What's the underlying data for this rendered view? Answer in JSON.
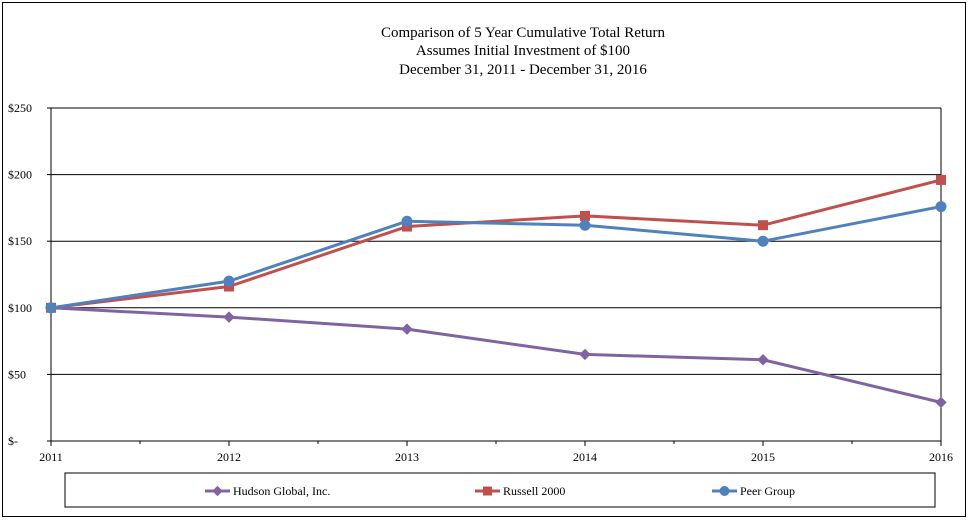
{
  "chart_data": {
    "type": "line",
    "title": [
      "Comparison  of  5 Year  Cumulative  Total  Return",
      "Assumes  Initial  Investment  of  $100",
      "December  31, 2011 - December  31, 2016"
    ],
    "categories": [
      "2011",
      "2012",
      "2013",
      "2014",
      "2015",
      "2016"
    ],
    "y_ticks": [
      {
        "value": 0,
        "label": "$-"
      },
      {
        "value": 50,
        "label": "$50"
      },
      {
        "value": 100,
        "label": "$100"
      },
      {
        "value": 150,
        "label": "$150"
      },
      {
        "value": 200,
        "label": "$200"
      },
      {
        "value": 250,
        "label": "$250"
      }
    ],
    "ylim": [
      0,
      250
    ],
    "grid": true,
    "legend_position": "bottom",
    "series": [
      {
        "name": "Hudson Global, Inc.",
        "color": "#8064A2",
        "marker": "diamond",
        "values": [
          100,
          93,
          84,
          65,
          61,
          29
        ]
      },
      {
        "name": "Russell 2000",
        "color": "#C0504D",
        "marker": "square",
        "values": [
          100,
          116,
          161,
          169,
          162,
          196
        ]
      },
      {
        "name": "Peer Group",
        "color": "#4F81BD",
        "marker": "circle",
        "values": [
          100,
          120,
          165,
          162,
          150,
          176
        ]
      }
    ]
  }
}
